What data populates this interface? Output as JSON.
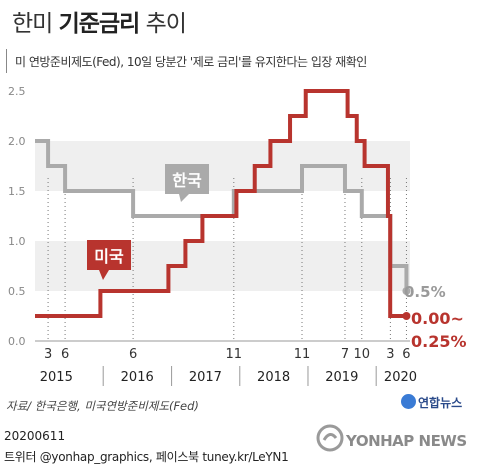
{
  "header": {
    "title_prefix": "한미 ",
    "title_bold": "기준금리",
    "title_suffix": " 추이",
    "subtitle": "미 연방준비제도(Fed), 10일 당분간 '제로 금리'를 유지한다는 입장 재확인"
  },
  "footer": {
    "source": "자료/ 한국은행, 미국연방준비제도(Fed)",
    "brand": "연합뉴스",
    "date": "20200611",
    "social": "트위터 @yonhap_graphics, 페이스북 tuney.kr/LeYN1",
    "watermark": "YONHAP NEWS"
  },
  "chart_data": {
    "type": "line",
    "title": "한미 기준금리 추이",
    "ylabel": "",
    "xlabel": "",
    "ylim": [
      0,
      2.5
    ],
    "yticks": [
      "0.0",
      "0.5",
      "1.0",
      "1.5",
      "2.0",
      "2.5"
    ],
    "month_ticks": [
      "3",
      "6",
      "6",
      "11",
      "11",
      "7",
      "10",
      "3",
      "6"
    ],
    "year_ticks": [
      "2015",
      "2016",
      "2017",
      "2018",
      "2019",
      "2020"
    ],
    "series": [
      {
        "name": "한국",
        "color": "#aaaaaa",
        "points": [
          [
            "2015-01-01",
            2.0
          ],
          [
            "2015-03-12",
            1.75
          ],
          [
            "2015-06-11",
            1.5
          ],
          [
            "2016-06-09",
            1.25
          ],
          [
            "2017-11-30",
            1.5
          ],
          [
            "2018-11-30",
            1.75
          ],
          [
            "2019-07-18",
            1.5
          ],
          [
            "2019-10-16",
            1.25
          ],
          [
            "2020-03-17",
            0.75
          ],
          [
            "2020-06-11",
            0.5
          ]
        ],
        "end_label": "0.5%"
      },
      {
        "name": "미국",
        "color": "#b8342e",
        "points": [
          [
            "2015-01-01",
            0.25
          ],
          [
            "2015-12-17",
            0.5
          ],
          [
            "2016-12-15",
            0.75
          ],
          [
            "2017-03-16",
            1.0
          ],
          [
            "2017-06-15",
            1.25
          ],
          [
            "2017-12-14",
            1.5
          ],
          [
            "2018-03-22",
            1.75
          ],
          [
            "2018-06-14",
            2.0
          ],
          [
            "2018-09-27",
            2.25
          ],
          [
            "2018-12-20",
            2.5
          ],
          [
            "2019-08-01",
            2.25
          ],
          [
            "2019-09-19",
            2.0
          ],
          [
            "2019-10-31",
            1.75
          ],
          [
            "2020-03-04",
            1.25
          ],
          [
            "2020-03-16",
            0.25
          ],
          [
            "2020-06-11",
            0.25
          ]
        ],
        "end_label_1": "0.00~",
        "end_label_2": "0.25%"
      }
    ],
    "grid": "alternating bands"
  }
}
